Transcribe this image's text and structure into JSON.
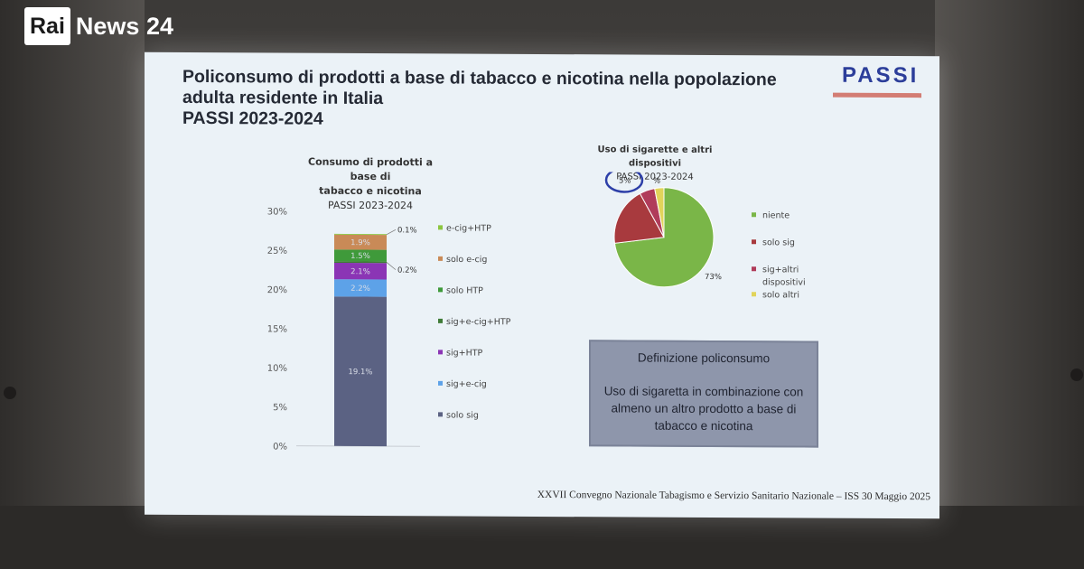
{
  "broadcast": {
    "logo_rai": "Rai",
    "logo_news": "News 24"
  },
  "slide": {
    "title_lines": [
      "Policonsumo di prodotti a base di tabacco e nicotina nella popolazione",
      "adulta residente in Italia",
      "PASSI 2023-2024"
    ],
    "logo_text": "PASSI",
    "footer": "XXVII Convegno Nazionale Tabagismo e Servizio Sanitario Nazionale – ISS 30 Maggio 2025",
    "definition": {
      "heading": "Definizione policonsumo",
      "text": "Uso di sigaretta in combinazione con almeno un altro prodotto a base di tabacco e nicotina"
    }
  },
  "colors": {
    "solo_sig": "#5b6283",
    "sig_e_cig": "#5da2e8",
    "sig_htp": "#8b35b5",
    "sig_e_cig_htp": "#3f7b37",
    "solo_htp": "#3f9a3a",
    "solo_e_cig": "#c98a57",
    "e_cig_htp": "#8cc63f",
    "niente": "#7ab648",
    "pie_solo_sig": "#a83a3e",
    "pie_sig_altri": "#b03c5a",
    "pie_solo_altri": "#e1d45a"
  },
  "chart_data": [
    {
      "type": "bar",
      "title_lines": [
        "Consumo di prodotti a base di",
        "tabacco e nicotina"
      ],
      "subtitle": "PASSI 2023-2024",
      "categories": [
        ""
      ],
      "stacked": true,
      "ylim": [
        0,
        30
      ],
      "yticks": [
        "0%",
        "5%",
        "10%",
        "15%",
        "20%",
        "25%",
        "30%"
      ],
      "series": [
        {
          "name": "solo sig",
          "values": [
            19.1
          ],
          "label": "19.1%",
          "color_key": "solo_sig"
        },
        {
          "name": "sig+e-cig",
          "values": [
            2.2
          ],
          "label": "2.2%",
          "color_key": "sig_e_cig"
        },
        {
          "name": "sig+HTP",
          "values": [
            2.1
          ],
          "label": "2.1%",
          "color_key": "sig_htp"
        },
        {
          "name": "sig+e-cig+HTP",
          "values": [
            0.2
          ],
          "label": "0.2%",
          "color_key": "sig_e_cig_htp"
        },
        {
          "name": "solo HTP",
          "values": [
            1.5
          ],
          "label": "1.5%",
          "color_key": "solo_htp"
        },
        {
          "name": "solo e-cig",
          "values": [
            1.9
          ],
          "label": "1.9%",
          "color_key": "solo_e_cig"
        },
        {
          "name": "e-cig+HTP",
          "values": [
            0.1
          ],
          "label": "0.1%",
          "color_key": "e_cig_htp"
        }
      ],
      "legend_order": [
        "e-cig+HTP",
        "solo e-cig",
        "solo HTP",
        "sig+e-cig+HTP",
        "sig+HTP",
        "sig+e-cig",
        "solo sig"
      ],
      "legend_position": "right"
    },
    {
      "type": "pie",
      "title": "Uso di sigarette e altri dispositivi",
      "subtitle": "PASSI 2023-2024",
      "slices": [
        {
          "name": "niente",
          "value": 73,
          "label": "73%",
          "color_key": "niente"
        },
        {
          "name": "solo sig",
          "value": 19,
          "label": "19%",
          "color_key": "pie_solo_sig"
        },
        {
          "name": "sig+altri dispositivi",
          "value": 5,
          "label": "5%",
          "color_key": "pie_sig_altri",
          "highlighted": true
        },
        {
          "name": "solo altri dispositivi",
          "value": 3,
          "label": "%",
          "color_key": "pie_solo_altri"
        }
      ],
      "legend": [
        {
          "lines": [
            "niente"
          ],
          "color_key": "niente"
        },
        {
          "lines": [
            "solo sig"
          ],
          "color_key": "pie_solo_sig"
        },
        {
          "lines": [
            "sig+altri",
            "dispositivi"
          ],
          "color_key": "pie_sig_altri"
        },
        {
          "lines": [
            "solo altri",
            "dispositivi"
          ],
          "color_key": "pie_solo_altri"
        }
      ],
      "legend_position": "right"
    }
  ]
}
